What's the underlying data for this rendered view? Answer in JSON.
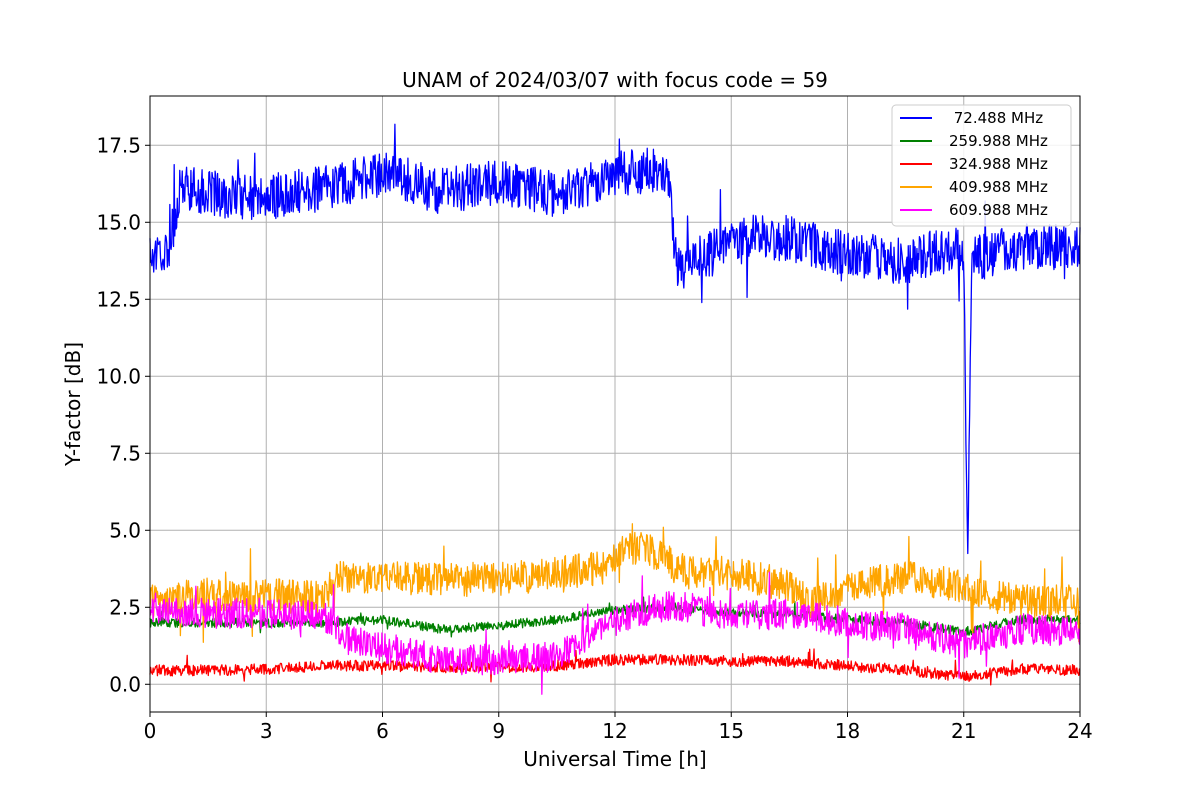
{
  "chart_data": {
    "type": "line",
    "title": "UNAM of 2024/03/07 with focus code = 59",
    "xlabel": "Universal Time [h]",
    "ylabel": "Y-factor [dB]",
    "xlim": [
      0,
      24
    ],
    "ylim": [
      -0.9,
      19.1
    ],
    "xticks": [
      0,
      3,
      6,
      9,
      12,
      15,
      18,
      21,
      24
    ],
    "yticks": [
      0.0,
      2.5,
      5.0,
      7.5,
      10.0,
      12.5,
      15.0,
      17.5
    ],
    "ytick_labels": [
      "0.0",
      "2.5",
      "5.0",
      "7.5",
      "10.0",
      "12.5",
      "15.0",
      "17.5"
    ],
    "grid": true,
    "legend_position": "top-right",
    "series": [
      {
        "name": " 72.488 MHz",
        "color": "#0000ff",
        "x": [
          0,
          0.5,
          0.8,
          1.5,
          3,
          4.5,
          6,
          7.5,
          9,
          10.5,
          12,
          13,
          13.4,
          13.6,
          14.5,
          15.5,
          16.5,
          17.5,
          18.5,
          19.5,
          20.5,
          21,
          21.1,
          21.15,
          21.2,
          21.5,
          22.5,
          24
        ],
        "y": [
          14.0,
          14.2,
          16.2,
          15.9,
          15.8,
          16.1,
          16.6,
          16.0,
          16.3,
          15.9,
          16.6,
          16.7,
          16.2,
          13.5,
          14.0,
          14.5,
          14.5,
          14.1,
          13.9,
          13.7,
          14.2,
          14.0,
          3.8,
          8.5,
          13.8,
          13.9,
          14.2,
          14.2
        ],
        "spread": 0.75
      },
      {
        "name": "259.988 MHz",
        "color": "#008000",
        "x": [
          0,
          1.5,
          3,
          4.5,
          6,
          7.5,
          9,
          10.5,
          12,
          13.5,
          15,
          16.5,
          18,
          19.5,
          21,
          22.5,
          24
        ],
        "y": [
          2.0,
          2.0,
          2.0,
          2.0,
          2.1,
          1.8,
          1.9,
          2.1,
          2.4,
          2.5,
          2.3,
          2.3,
          2.1,
          2.0,
          1.7,
          2.1,
          2.1
        ],
        "spread": 0.15
      },
      {
        "name": "324.988 MHz",
        "color": "#ff0000",
        "x": [
          0,
          1.5,
          3,
          4.5,
          6,
          7.5,
          9,
          10.5,
          12,
          13.5,
          15,
          16.5,
          18,
          19.5,
          21,
          22.5,
          24
        ],
        "y": [
          0.45,
          0.45,
          0.5,
          0.6,
          0.6,
          0.55,
          0.55,
          0.6,
          0.8,
          0.8,
          0.75,
          0.75,
          0.6,
          0.45,
          0.25,
          0.5,
          0.45
        ],
        "spread": 0.18
      },
      {
        "name": "409.988 MHz",
        "color": "#ffa500",
        "x": [
          0,
          1.5,
          3,
          4.5,
          4.8,
          6,
          7.5,
          9,
          10.5,
          11.8,
          12.2,
          13,
          13.8,
          15,
          16.5,
          17,
          18,
          19.5,
          20.5,
          21.5,
          22.5,
          24
        ],
        "y": [
          2.7,
          2.9,
          2.9,
          2.8,
          3.5,
          3.5,
          3.4,
          3.4,
          3.6,
          3.8,
          4.5,
          4.3,
          3.7,
          3.6,
          3.2,
          2.6,
          3.2,
          3.5,
          3.3,
          2.9,
          2.7,
          2.7
        ],
        "spread": 0.55
      },
      {
        "name": "609.988 MHz",
        "color": "#ff00ff",
        "x": [
          0,
          1.5,
          3,
          4.5,
          5,
          6,
          7.5,
          9,
          10.5,
          11.5,
          12.5,
          13.5,
          15,
          16.5,
          18,
          19.5,
          21,
          22.5,
          24
        ],
        "y": [
          2.5,
          2.3,
          2.3,
          2.2,
          1.5,
          1.2,
          0.8,
          0.8,
          0.9,
          1.7,
          2.3,
          2.6,
          2.2,
          2.3,
          2.0,
          1.8,
          1.3,
          1.8,
          1.7
        ],
        "spread": 0.5
      }
    ]
  }
}
